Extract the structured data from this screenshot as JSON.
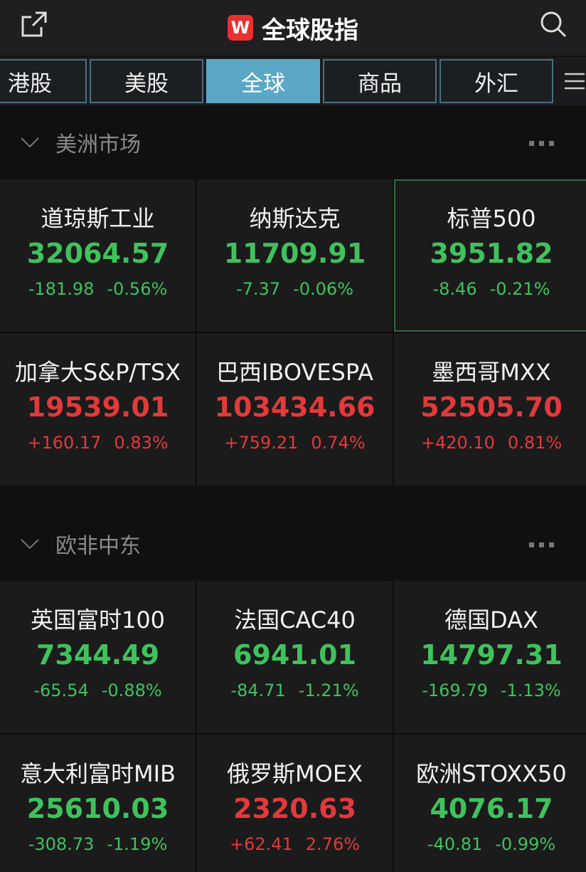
{
  "header": {
    "logo": "W",
    "title": "全球股指"
  },
  "tabs": {
    "items": [
      "港股",
      "美股",
      "全球",
      "商品",
      "外汇"
    ],
    "active": 2
  },
  "sections": [
    {
      "title": "美洲市场",
      "items": [
        {
          "name": "道琼斯工业",
          "price": "32064.57",
          "change": "-181.98",
          "pct": "-0.56%"
        },
        {
          "name": "纳斯达克",
          "price": "11709.91",
          "change": "-7.37",
          "pct": "-0.06%"
        },
        {
          "name": "标普500",
          "price": "3951.82",
          "change": "-8.46",
          "pct": "-0.21%"
        },
        {
          "name": "加拿大S&P/TSX",
          "price": "19539.01",
          "change": "+160.17",
          "pct": "0.83%"
        },
        {
          "name": "巴西IBOVESPA",
          "price": "103434.66",
          "change": "+759.21",
          "pct": "0.74%"
        },
        {
          "name": "墨西哥MXX",
          "price": "52505.70",
          "change": "+420.10",
          "pct": "0.81%"
        }
      ]
    },
    {
      "title": "欧非中东",
      "items": [
        {
          "name": "英国富时100",
          "price": "7344.49",
          "change": "-65.54",
          "pct": "-0.88%"
        },
        {
          "name": "法国CAC40",
          "price": "6941.01",
          "change": "-84.71",
          "pct": "-1.21%"
        },
        {
          "name": "德国DAX",
          "price": "14797.31",
          "change": "-169.79",
          "pct": "-1.13%"
        },
        {
          "name": "意大利富时MIB",
          "price": "25610.03",
          "change": "-308.73",
          "pct": "-1.19%"
        },
        {
          "name": "俄罗斯MOEX",
          "price": "2320.63",
          "change": "+62.41",
          "pct": "2.76%"
        },
        {
          "name": "欧洲STOXX50",
          "price": "4076.17",
          "change": "-40.81",
          "pct": "-0.99%"
        }
      ]
    }
  ]
}
